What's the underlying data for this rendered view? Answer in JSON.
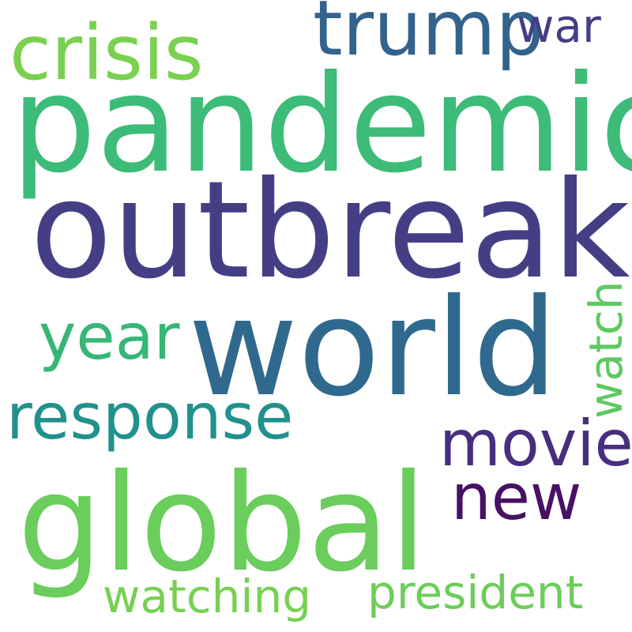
{
  "word_cloud": {
    "words": [
      {
        "text": "pandemic",
        "color": "#3dbb78"
      },
      {
        "text": "outbreak",
        "color": "#443f85"
      },
      {
        "text": "world",
        "color": "#30698e"
      },
      {
        "text": "global",
        "color": "#6acd5c"
      },
      {
        "text": "crisis",
        "color": "#7ad151"
      },
      {
        "text": "trump",
        "color": "#33638d"
      },
      {
        "text": "war",
        "color": "#433e85"
      },
      {
        "text": "year",
        "color": "#36b677"
      },
      {
        "text": "response",
        "color": "#21918c"
      },
      {
        "text": "watch",
        "color": "#5ec962"
      },
      {
        "text": "movie",
        "color": "#472f7d"
      },
      {
        "text": "new",
        "color": "#471164"
      },
      {
        "text": "watching",
        "color": "#77d052"
      },
      {
        "text": "president",
        "color": "#6ccd5a"
      }
    ]
  }
}
